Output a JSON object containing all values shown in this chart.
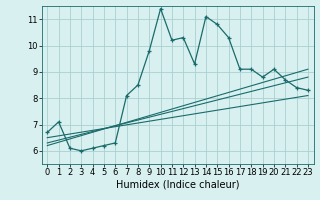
{
  "title": "",
  "xlabel": "Humidex (Indice chaleur)",
  "bg_color": "#d8f0f0",
  "grid_color": "#aacfcf",
  "line_color": "#1a6b6b",
  "xlim": [
    -0.5,
    23.5
  ],
  "ylim": [
    5.5,
    11.5
  ],
  "xticks": [
    0,
    1,
    2,
    3,
    4,
    5,
    6,
    7,
    8,
    9,
    10,
    11,
    12,
    13,
    14,
    15,
    16,
    17,
    18,
    19,
    20,
    21,
    22,
    23
  ],
  "yticks": [
    6,
    7,
    8,
    9,
    10,
    11
  ],
  "main_x": [
    0,
    1,
    2,
    3,
    4,
    5,
    6,
    7,
    8,
    9,
    10,
    11,
    12,
    13,
    14,
    15,
    16,
    17,
    18,
    19,
    20,
    21,
    22,
    23
  ],
  "main_y": [
    6.7,
    7.1,
    6.1,
    6.0,
    6.1,
    6.2,
    6.3,
    8.1,
    8.5,
    9.8,
    11.4,
    10.2,
    10.3,
    9.3,
    11.1,
    10.8,
    10.3,
    9.1,
    9.1,
    8.8,
    9.1,
    8.7,
    8.4,
    8.3
  ],
  "line2_x": [
    0,
    23
  ],
  "line2_y": [
    6.5,
    8.1
  ],
  "line3_x": [
    0,
    23
  ],
  "line3_y": [
    6.3,
    8.8
  ],
  "line4_x": [
    0,
    23
  ],
  "line4_y": [
    6.2,
    9.1
  ],
  "tick_fontsize": 6,
  "xlabel_fontsize": 7
}
